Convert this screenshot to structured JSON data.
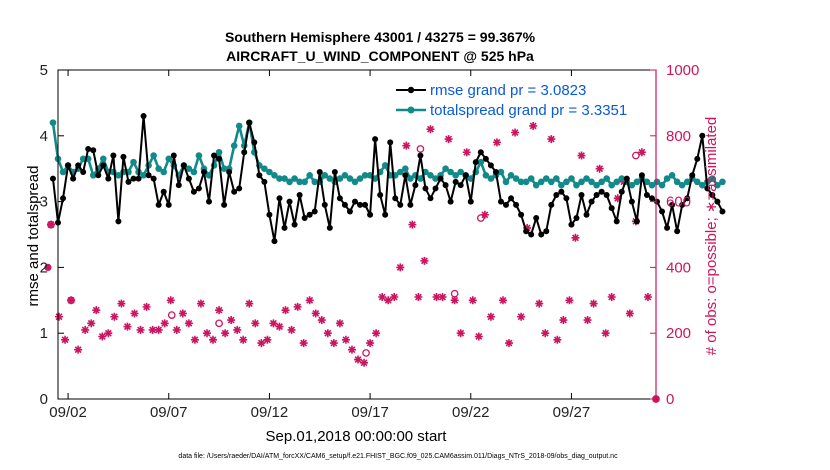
{
  "chart_data": {
    "type": "line",
    "title": "Southern Hemisphere 43001 / 43275 = 99.367%",
    "subtitle": "AIRCRAFT_U_WIND_COMPONENT @ 525 hPa",
    "xlabel": "Sep.01,2018 00:00:00 start",
    "ylabel_left": "rmse and totalspread",
    "ylabel_right": "# of obs: o=possible; ∗=assimilated",
    "footnote": "data file: /Users/raeder/DAI/ATM_forcXX/CAM6_setup/f.e21.FHIST_BGC.f09_025.CAM6assim.011/Diags_NTrS_2018-09/obs_diag_output.nc",
    "x_unit": "days since Sep.01,2018",
    "xlim": [
      0.5,
      30.2
    ],
    "xticks": [
      1,
      6,
      11,
      16,
      21,
      26
    ],
    "xtick_labels": [
      "09/02",
      "09/07",
      "09/12",
      "09/17",
      "09/22",
      "09/27"
    ],
    "ylim_left": [
      0,
      5
    ],
    "yticks_left": [
      "0",
      "1",
      "2",
      "3",
      "4",
      "5"
    ],
    "ylim_right": [
      0,
      1000
    ],
    "yticks_right": [
      "0",
      "200",
      "400",
      "600",
      "800",
      "1000"
    ],
    "legend": [
      "rmse grand pr = 3.0823",
      "totalspread grand pr = 3.3351"
    ],
    "legend_location": "top-right",
    "colors": {
      "rmse": "#000000",
      "spread": "#138a8a",
      "obs": "#cc1560",
      "legend_text": "#0a5bd6"
    },
    "series": [
      {
        "name": "rmse",
        "axis": "left",
        "x_start": 0.25,
        "x_step": 0.25,
        "values": [
          3.35,
          2.68,
          3.05,
          3.55,
          3.35,
          3.55,
          3.45,
          3.8,
          3.78,
          3.4,
          3.55,
          3.35,
          3.7,
          2.7,
          3.68,
          3.3,
          3.35,
          3.35,
          4.3,
          3.4,
          3.35,
          2.95,
          3.15,
          2.95,
          3.7,
          3.25,
          3.55,
          3.35,
          3.15,
          3.2,
          3.45,
          3.0,
          3.7,
          3.65,
          2.95,
          3.45,
          3.15,
          3.2,
          3.75,
          4.2,
          3.9,
          3.4,
          3.3,
          2.8,
          2.4,
          3.05,
          2.6,
          3.0,
          2.65,
          3.1,
          2.75,
          2.8,
          2.85,
          3.45,
          2.95,
          2.6,
          3.45,
          3.05,
          2.95,
          2.85,
          3.0,
          2.95,
          2.95,
          2.8,
          3.95,
          3.1,
          2.8,
          3.9,
          3.05,
          2.95,
          3.4,
          2.95,
          3.25,
          3.7,
          3.2,
          3.05,
          3.2,
          3.35,
          3.25,
          3.0,
          3.3,
          3.25,
          3.4,
          3.0,
          3.6,
          3.75,
          3.65,
          3.55,
          3.45,
          3.0,
          2.95,
          3.05,
          2.95,
          2.8,
          2.55,
          2.5,
          2.75,
          2.5,
          2.55,
          2.95,
          3.1,
          3.15,
          3.05,
          2.65,
          2.75,
          3.1,
          2.8,
          3.0,
          3.1,
          3.15,
          3.1,
          2.9,
          2.7,
          3.15,
          3.35,
          3.0,
          2.7,
          3.4,
          3.1,
          3.05,
          3.0,
          2.85,
          2.6,
          2.95,
          2.55,
          2.95,
          3.05,
          3.4,
          3.65,
          4.0,
          3.2,
          3.1,
          3.0,
          2.85
        ]
      },
      {
        "name": "totalspread",
        "axis": "left",
        "x_start": 0.25,
        "x_step": 0.25,
        "values": [
          4.2,
          3.65,
          3.45,
          3.55,
          3.45,
          3.5,
          3.65,
          3.65,
          3.4,
          3.5,
          3.65,
          3.45,
          3.45,
          3.4,
          3.45,
          3.45,
          3.6,
          3.45,
          3.4,
          3.55,
          3.7,
          3.5,
          3.45,
          3.65,
          3.55,
          3.4,
          3.55,
          3.5,
          3.45,
          3.7,
          3.5,
          3.4,
          3.55,
          3.75,
          3.5,
          3.5,
          3.85,
          4.15,
          3.85,
          4.2,
          3.75,
          3.55,
          3.5,
          3.45,
          3.4,
          3.35,
          3.35,
          3.3,
          3.35,
          3.3,
          3.3,
          3.4,
          3.3,
          3.3,
          3.4,
          3.35,
          3.3,
          3.35,
          3.4,
          3.35,
          3.3,
          3.35,
          3.4,
          3.4,
          3.35,
          3.45,
          3.55,
          3.4,
          3.4,
          3.45,
          3.5,
          3.35,
          3.4,
          3.35,
          3.45,
          3.4,
          3.35,
          3.4,
          3.5,
          3.45,
          3.4,
          3.45,
          3.4,
          3.35,
          3.45,
          3.6,
          3.4,
          3.35,
          3.4,
          3.45,
          3.3,
          3.4,
          3.35,
          3.3,
          3.3,
          3.35,
          3.25,
          3.3,
          3.35,
          3.3,
          3.35,
          3.25,
          3.3,
          3.35,
          3.25,
          3.3,
          3.35,
          3.3,
          3.25,
          3.3,
          3.35,
          3.25,
          3.3,
          3.35,
          3.3,
          3.25,
          3.3,
          3.35,
          3.3,
          3.25,
          3.3,
          3.25,
          3.35,
          3.4,
          3.3,
          3.25,
          3.3,
          3.35,
          3.3,
          3.25,
          3.3,
          3.35,
          3.25,
          3.3
        ]
      },
      {
        "name": "# of obs assimilated",
        "axis": "right",
        "marker": "star",
        "x": [
          0.15,
          0.55,
          0.85,
          1.15,
          1.5,
          1.85,
          2.15,
          2.4,
          2.7,
          3.0,
          3.3,
          3.65,
          3.95,
          4.3,
          4.6,
          4.9,
          5.2,
          5.5,
          5.8,
          6.1,
          6.4,
          6.7,
          7.0,
          7.3,
          7.6,
          7.9,
          8.2,
          8.5,
          8.8,
          9.1,
          9.4,
          9.7,
          10.0,
          10.3,
          10.6,
          10.9,
          11.2,
          11.5,
          11.8,
          12.1,
          12.4,
          12.7,
          13.0,
          13.3,
          13.6,
          13.9,
          14.2,
          14.5,
          14.8,
          15.1,
          15.4,
          15.7,
          16.0,
          16.3,
          16.6,
          16.9,
          17.2,
          17.5,
          17.8,
          18.1,
          18.4,
          18.7,
          19.0,
          19.3,
          19.6,
          19.9,
          20.2,
          20.5,
          20.8,
          21.1,
          21.4,
          21.7,
          22.0,
          22.3,
          22.6,
          22.9,
          23.2,
          23.5,
          23.8,
          24.1,
          24.4,
          24.7,
          25.0,
          25.3,
          25.6,
          25.9,
          26.2,
          26.5,
          26.8,
          27.1,
          27.4,
          27.7,
          28.0,
          28.3,
          28.6,
          28.9,
          29.2,
          29.5,
          29.8
        ],
        "y": [
          530,
          250,
          180,
          300,
          150,
          210,
          230,
          270,
          190,
          200,
          250,
          290,
          220,
          260,
          210,
          280,
          210,
          210,
          230,
          300,
          210,
          260,
          230,
          180,
          290,
          200,
          180,
          270,
          200,
          240,
          210,
          180,
          290,
          230,
          170,
          180,
          230,
          220,
          270,
          210,
          280,
          170,
          300,
          260,
          240,
          200,
          170,
          230,
          180,
          150,
          120,
          110,
          170,
          200,
          310,
          300,
          310,
          400,
          770,
          530,
          310,
          420,
          820,
          310,
          310,
          790,
          300,
          200,
          750,
          300,
          190,
          560,
          250,
          780,
          300,
          170,
          810,
          250,
          520,
          830,
          290,
          200,
          790,
          180,
          240,
          300,
          490,
          740,
          240,
          290,
          700,
          200,
          310,
          610,
          660,
          260,
          540,
          750,
          310
        ]
      },
      {
        "name": "# of obs possible",
        "axis": "right",
        "marker": "circle",
        "x": [
          0.15,
          1.15,
          6.15,
          8.5,
          15.8,
          18.5,
          20.2,
          21.5,
          29.2,
          30.2
        ],
        "y": [
          530,
          300,
          255,
          230,
          140,
          760,
          320,
          550,
          740,
          0
        ]
      },
      {
        "name": "# of obs possible (marker)",
        "axis": "right",
        "marker": "filled",
        "x": [
          0.0,
          30.2
        ],
        "y": [
          400,
          0
        ]
      }
    ]
  }
}
